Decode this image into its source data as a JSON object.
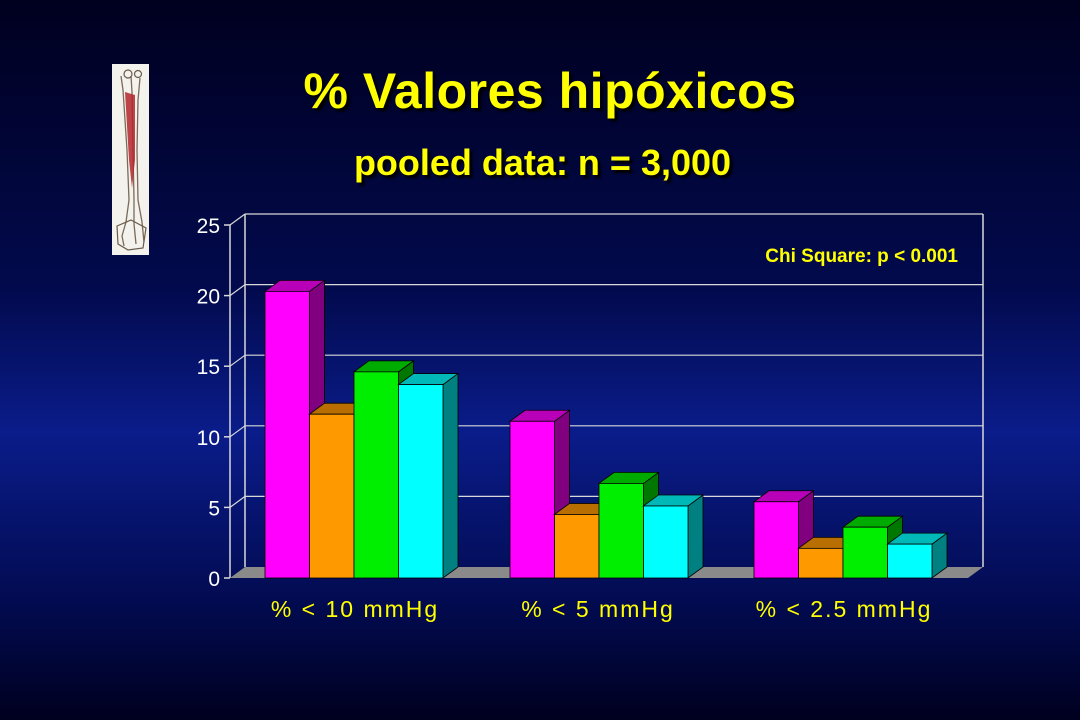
{
  "slide": {
    "title": "% Valores hipóxicos",
    "subtitle": "pooled data:  n = 3,000"
  },
  "image": {
    "icon": "leg-anatomy-icon"
  },
  "colors": {
    "background": "#0a1c8a",
    "title": "#ffff00",
    "series": [
      "#ff00ff",
      "#ff9900",
      "#00ee00",
      "#00ffff"
    ]
  },
  "chart_data": {
    "type": "bar",
    "style": "3d-clustered",
    "categories": [
      "% < 10 mmHg",
      "% < 5 mmHg",
      "% < 2.5 mmHg"
    ],
    "series": [
      {
        "color": "#ff00ff",
        "values": [
          20.3,
          11.1,
          5.4
        ]
      },
      {
        "color": "#ff9900",
        "values": [
          11.6,
          4.5,
          2.1
        ]
      },
      {
        "color": "#00ee00",
        "values": [
          14.6,
          6.7,
          3.6
        ]
      },
      {
        "color": "#00ffff",
        "values": [
          13.7,
          5.1,
          2.4
        ]
      }
    ],
    "yticks": [
      "0",
      "5",
      "10",
      "15",
      "20",
      "25"
    ],
    "ylim": [
      0,
      25
    ],
    "grid": true,
    "annotation": "Chi Square: p < 0.001"
  }
}
